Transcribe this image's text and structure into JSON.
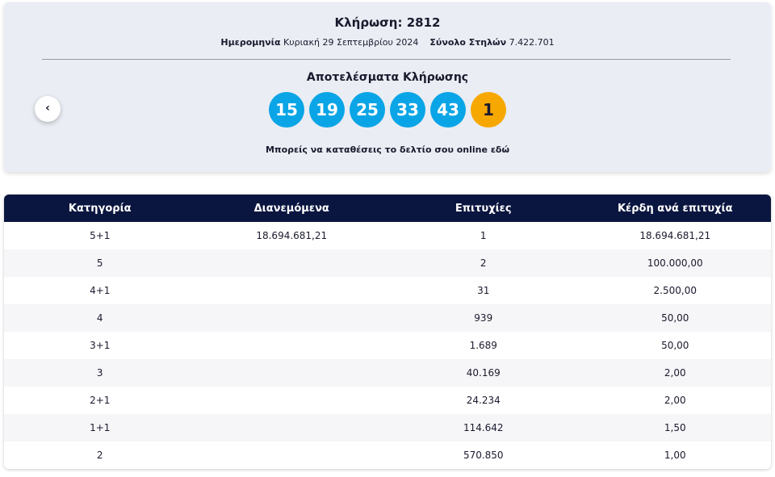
{
  "header": {
    "title": "Κλήρωση: 2812",
    "date_label": "Ημερομηνία",
    "date": "Κυριακή 29 Σεπτεμβρίου 2024",
    "columns_label": "Σύνολο Στηλών",
    "columns": "7.422.701"
  },
  "results": {
    "title": "Αποτελέσματα Κλήρωσης",
    "numbers": [
      15,
      19,
      25,
      33,
      43
    ],
    "bonus": 1,
    "note": "Μπορείς να καταθέσεις το δελτίο σου online",
    "note_link": "εδώ"
  },
  "table": {
    "headers": [
      "Κατηγορία",
      "Διανεμόμενα",
      "Επιτυχίες",
      "Κέρδη ανά επιτυχία"
    ],
    "rows": [
      {
        "category": "5+1",
        "distributed": "18.694.681,21",
        "winners": "1",
        "prize": "18.694.681,21"
      },
      {
        "category": "5",
        "winners": "2",
        "prize": "100.000,00"
      },
      {
        "category": "4+1",
        "winners": "31",
        "prize": "2.500,00"
      },
      {
        "category": "4",
        "winners": "939",
        "prize": "50,00"
      },
      {
        "category": "3+1",
        "winners": "1.689",
        "prize": "50,00"
      },
      {
        "category": "3",
        "winners": "40.169",
        "prize": "2,00"
      },
      {
        "category": "2+1",
        "winners": "24.234",
        "prize": "2,00"
      },
      {
        "category": "1+1",
        "winners": "114.642",
        "prize": "1,50"
      },
      {
        "category": "2",
        "winners": "570.850",
        "prize": "1,00"
      }
    ]
  }
}
